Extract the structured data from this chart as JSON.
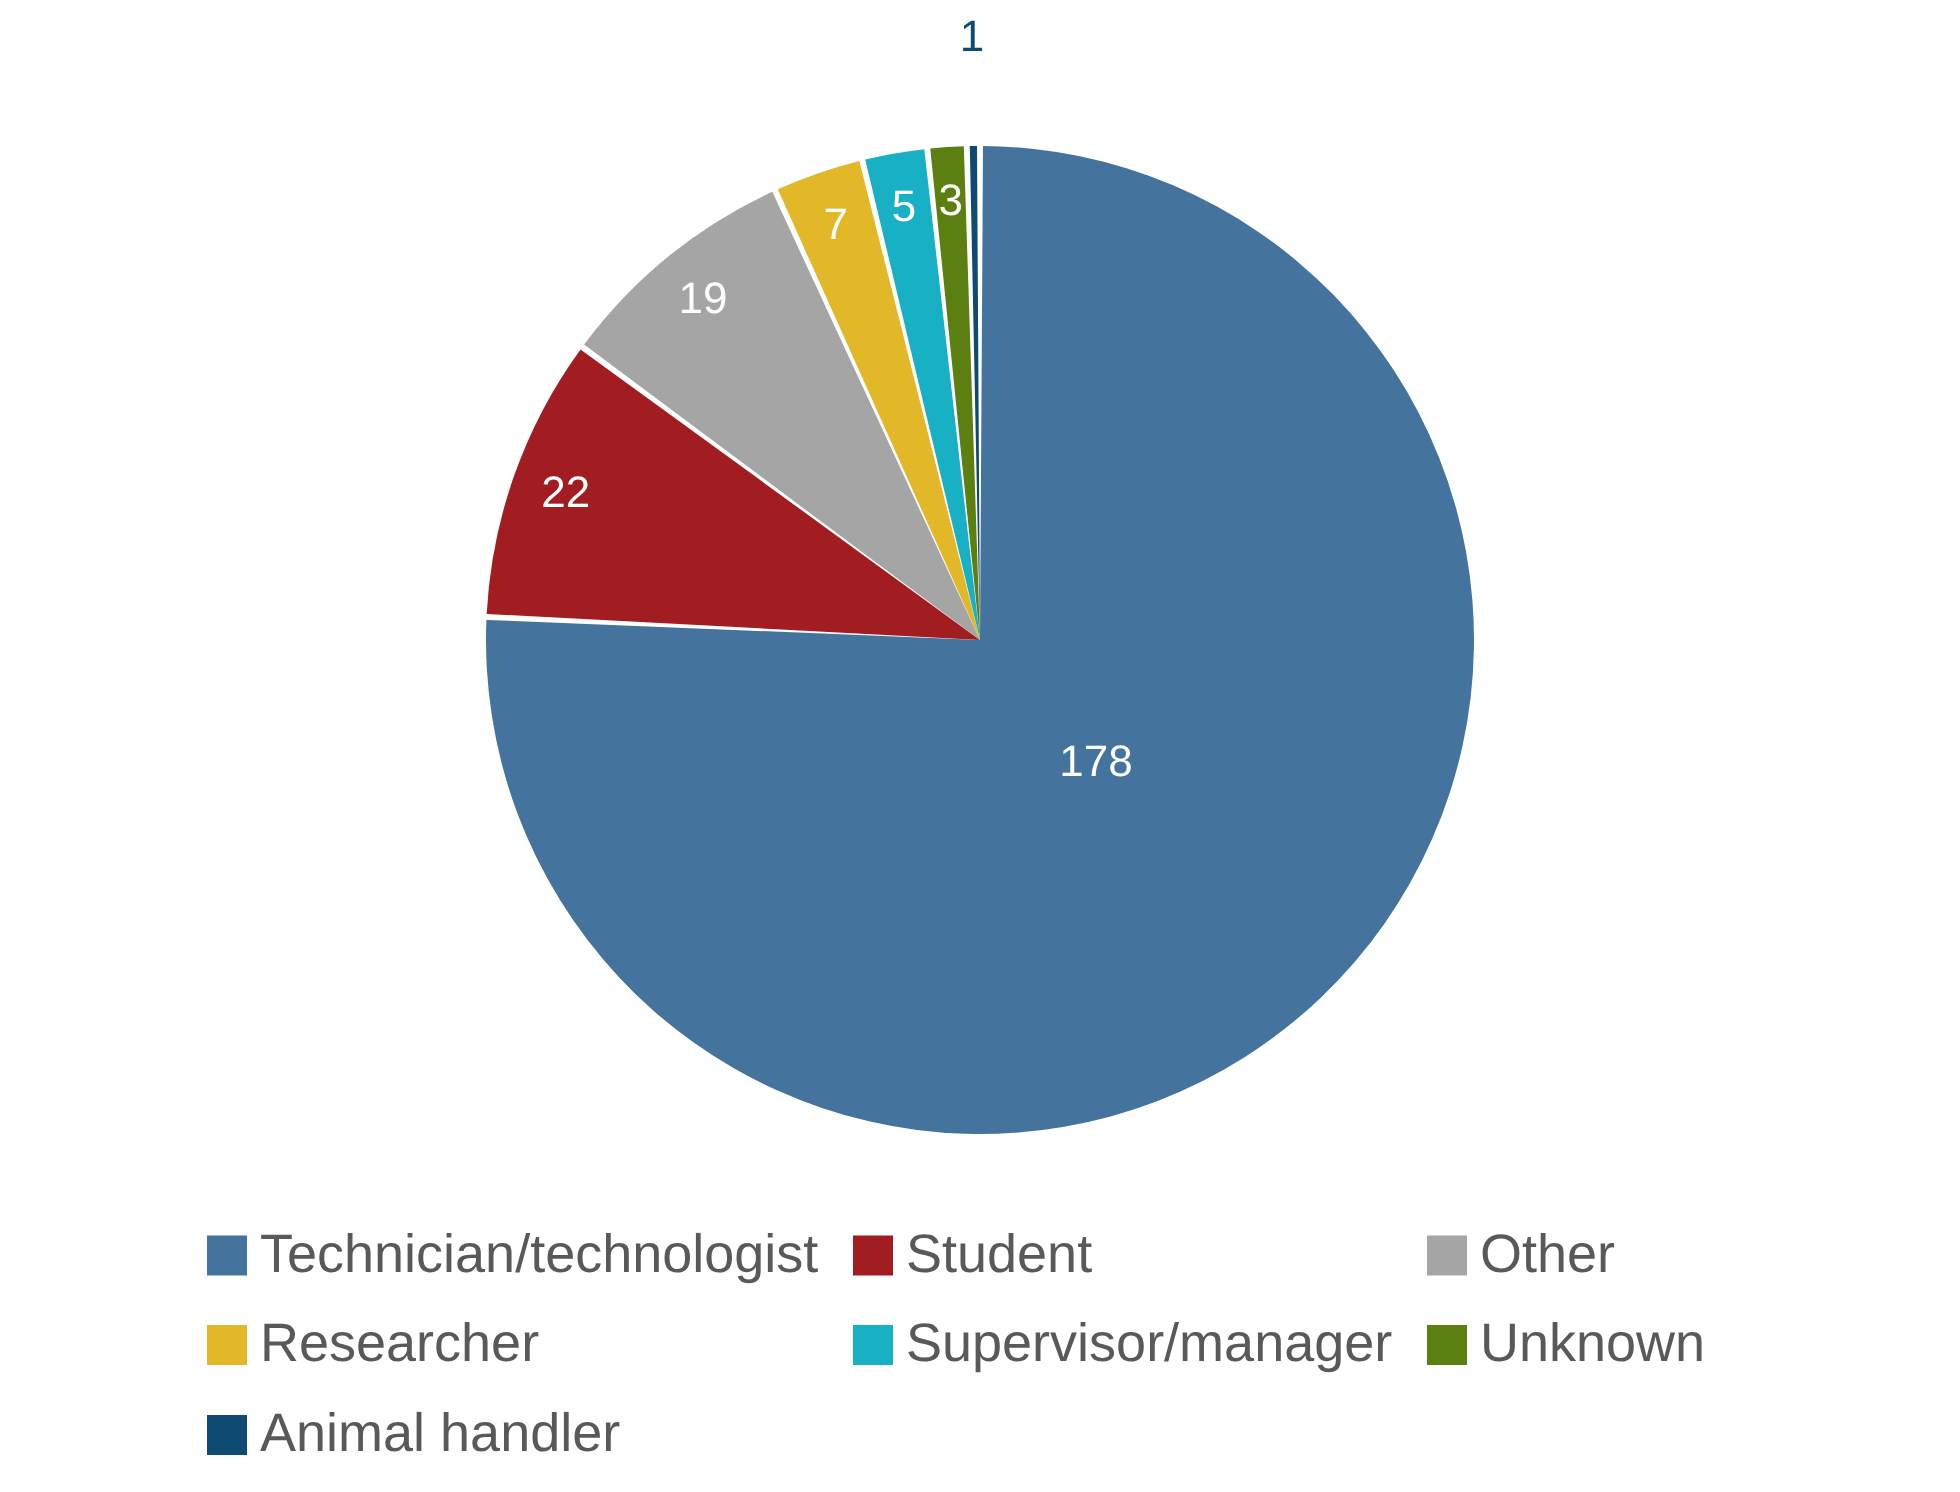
{
  "chart_data": {
    "type": "pie",
    "categories": [
      "Technician/technologist",
      "Student",
      "Other",
      "Researcher",
      "Supervisor/manager",
      "Unknown",
      "Animal handler"
    ],
    "values": [
      178,
      22,
      19,
      7,
      5,
      3,
      1
    ],
    "colors": [
      "#44749d",
      "#a11d21",
      "#a5a5a5",
      "#e2b728",
      "#17b0c4",
      "#5c7f11",
      "#0f4a73"
    ],
    "data_labels": true,
    "legend": "bottom"
  }
}
